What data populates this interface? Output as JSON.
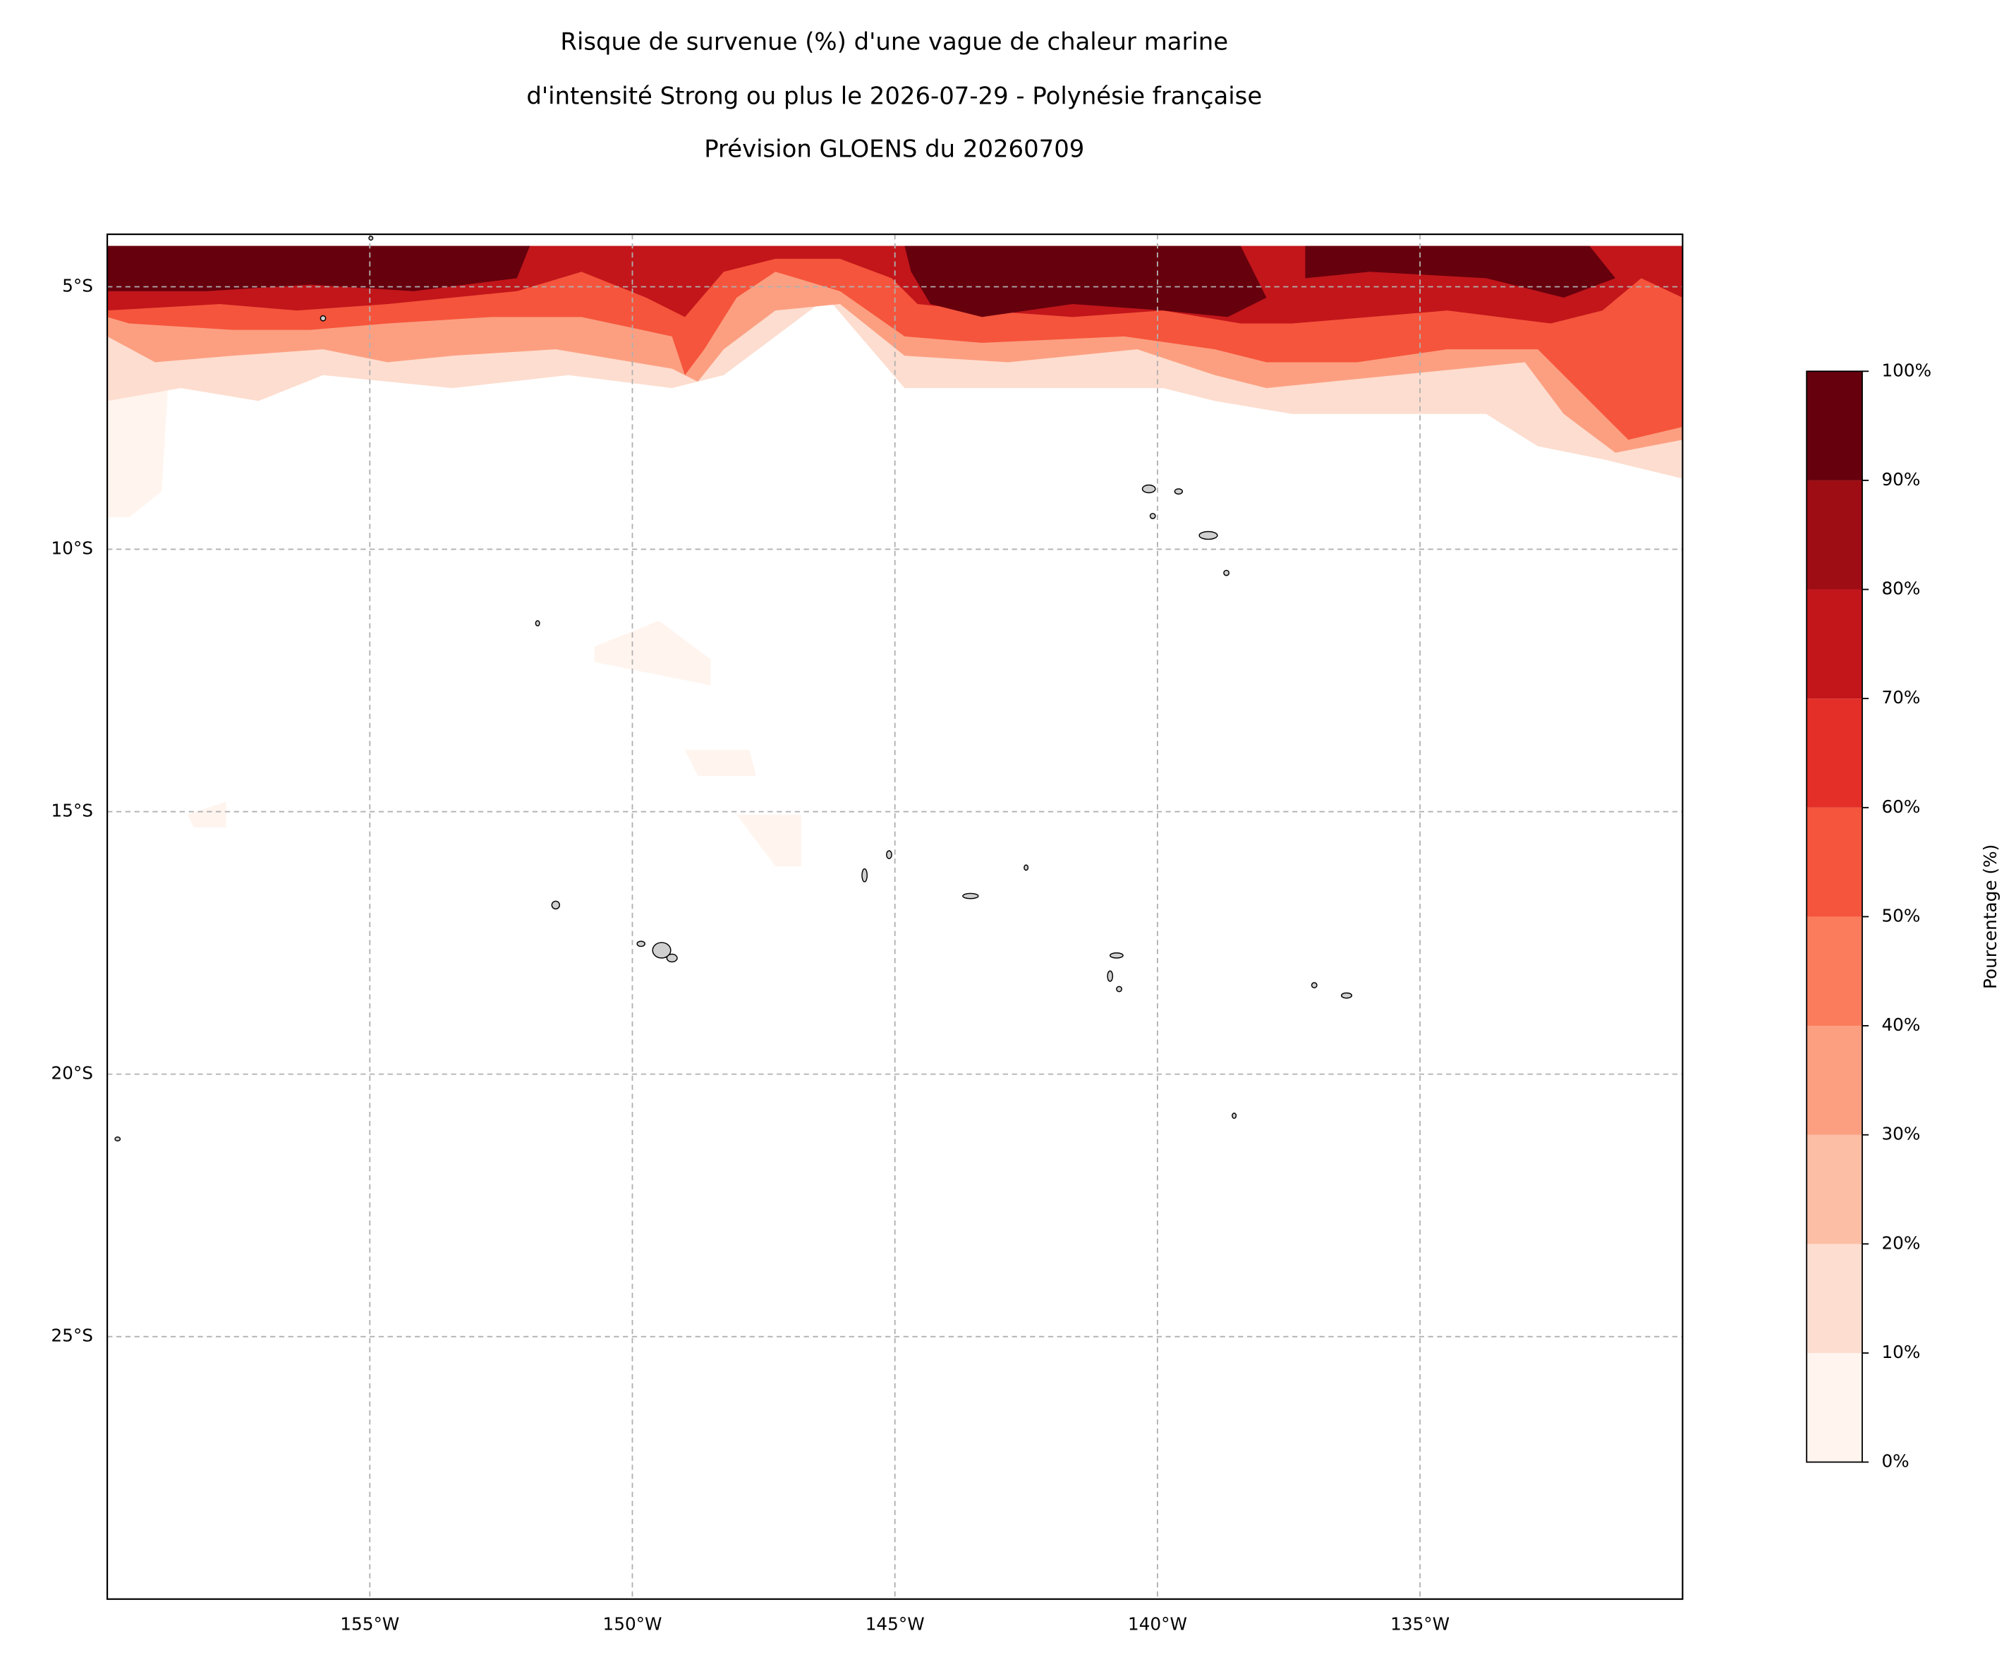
{
  "chart_data": {
    "type": "contour-map",
    "title": [
      "Risque de survenue (%) d'une vague de chaleur marine",
      "d'intensité Strong ou plus le 2026-07-29 - Polynésie française",
      "Prévision GLOENS du 20260709"
    ],
    "xlim": [
      -160,
      -130
    ],
    "ylim": [
      -30,
      -4
    ],
    "xticks": [
      {
        "value": -155,
        "label": "155°W"
      },
      {
        "value": -150,
        "label": "150°W"
      },
      {
        "value": -145,
        "label": "145°W"
      },
      {
        "value": -140,
        "label": "140°W"
      },
      {
        "value": -135,
        "label": "135°W"
      }
    ],
    "yticks": [
      {
        "value": -5,
        "label": "5°S"
      },
      {
        "value": -10,
        "label": "10°S"
      },
      {
        "value": -15,
        "label": "15°S"
      },
      {
        "value": -20,
        "label": "20°S"
      },
      {
        "value": -25,
        "label": "25°S"
      }
    ],
    "grid": true,
    "colorbar": {
      "label": "Pourcentage (%)",
      "ticks": [
        {
          "value": 0,
          "label": "0%"
        },
        {
          "value": 10,
          "label": "10%"
        },
        {
          "value": 20,
          "label": "20%"
        },
        {
          "value": 30,
          "label": "30%"
        },
        {
          "value": 40,
          "label": "40%"
        },
        {
          "value": 50,
          "label": "50%"
        },
        {
          "value": 60,
          "label": "60%"
        },
        {
          "value": 70,
          "label": "70%"
        },
        {
          "value": 80,
          "label": "80%"
        },
        {
          "value": 90,
          "label": "90%"
        },
        {
          "value": 100,
          "label": "100%"
        }
      ],
      "colors": [
        "#fff4ee",
        "#fdddcf",
        "#fcbea5",
        "#fc9f81",
        "#fb7c5c",
        "#f5553c",
        "#e32f27",
        "#c2161b",
        "#9e0d14",
        "#67000d"
      ]
    }
  }
}
